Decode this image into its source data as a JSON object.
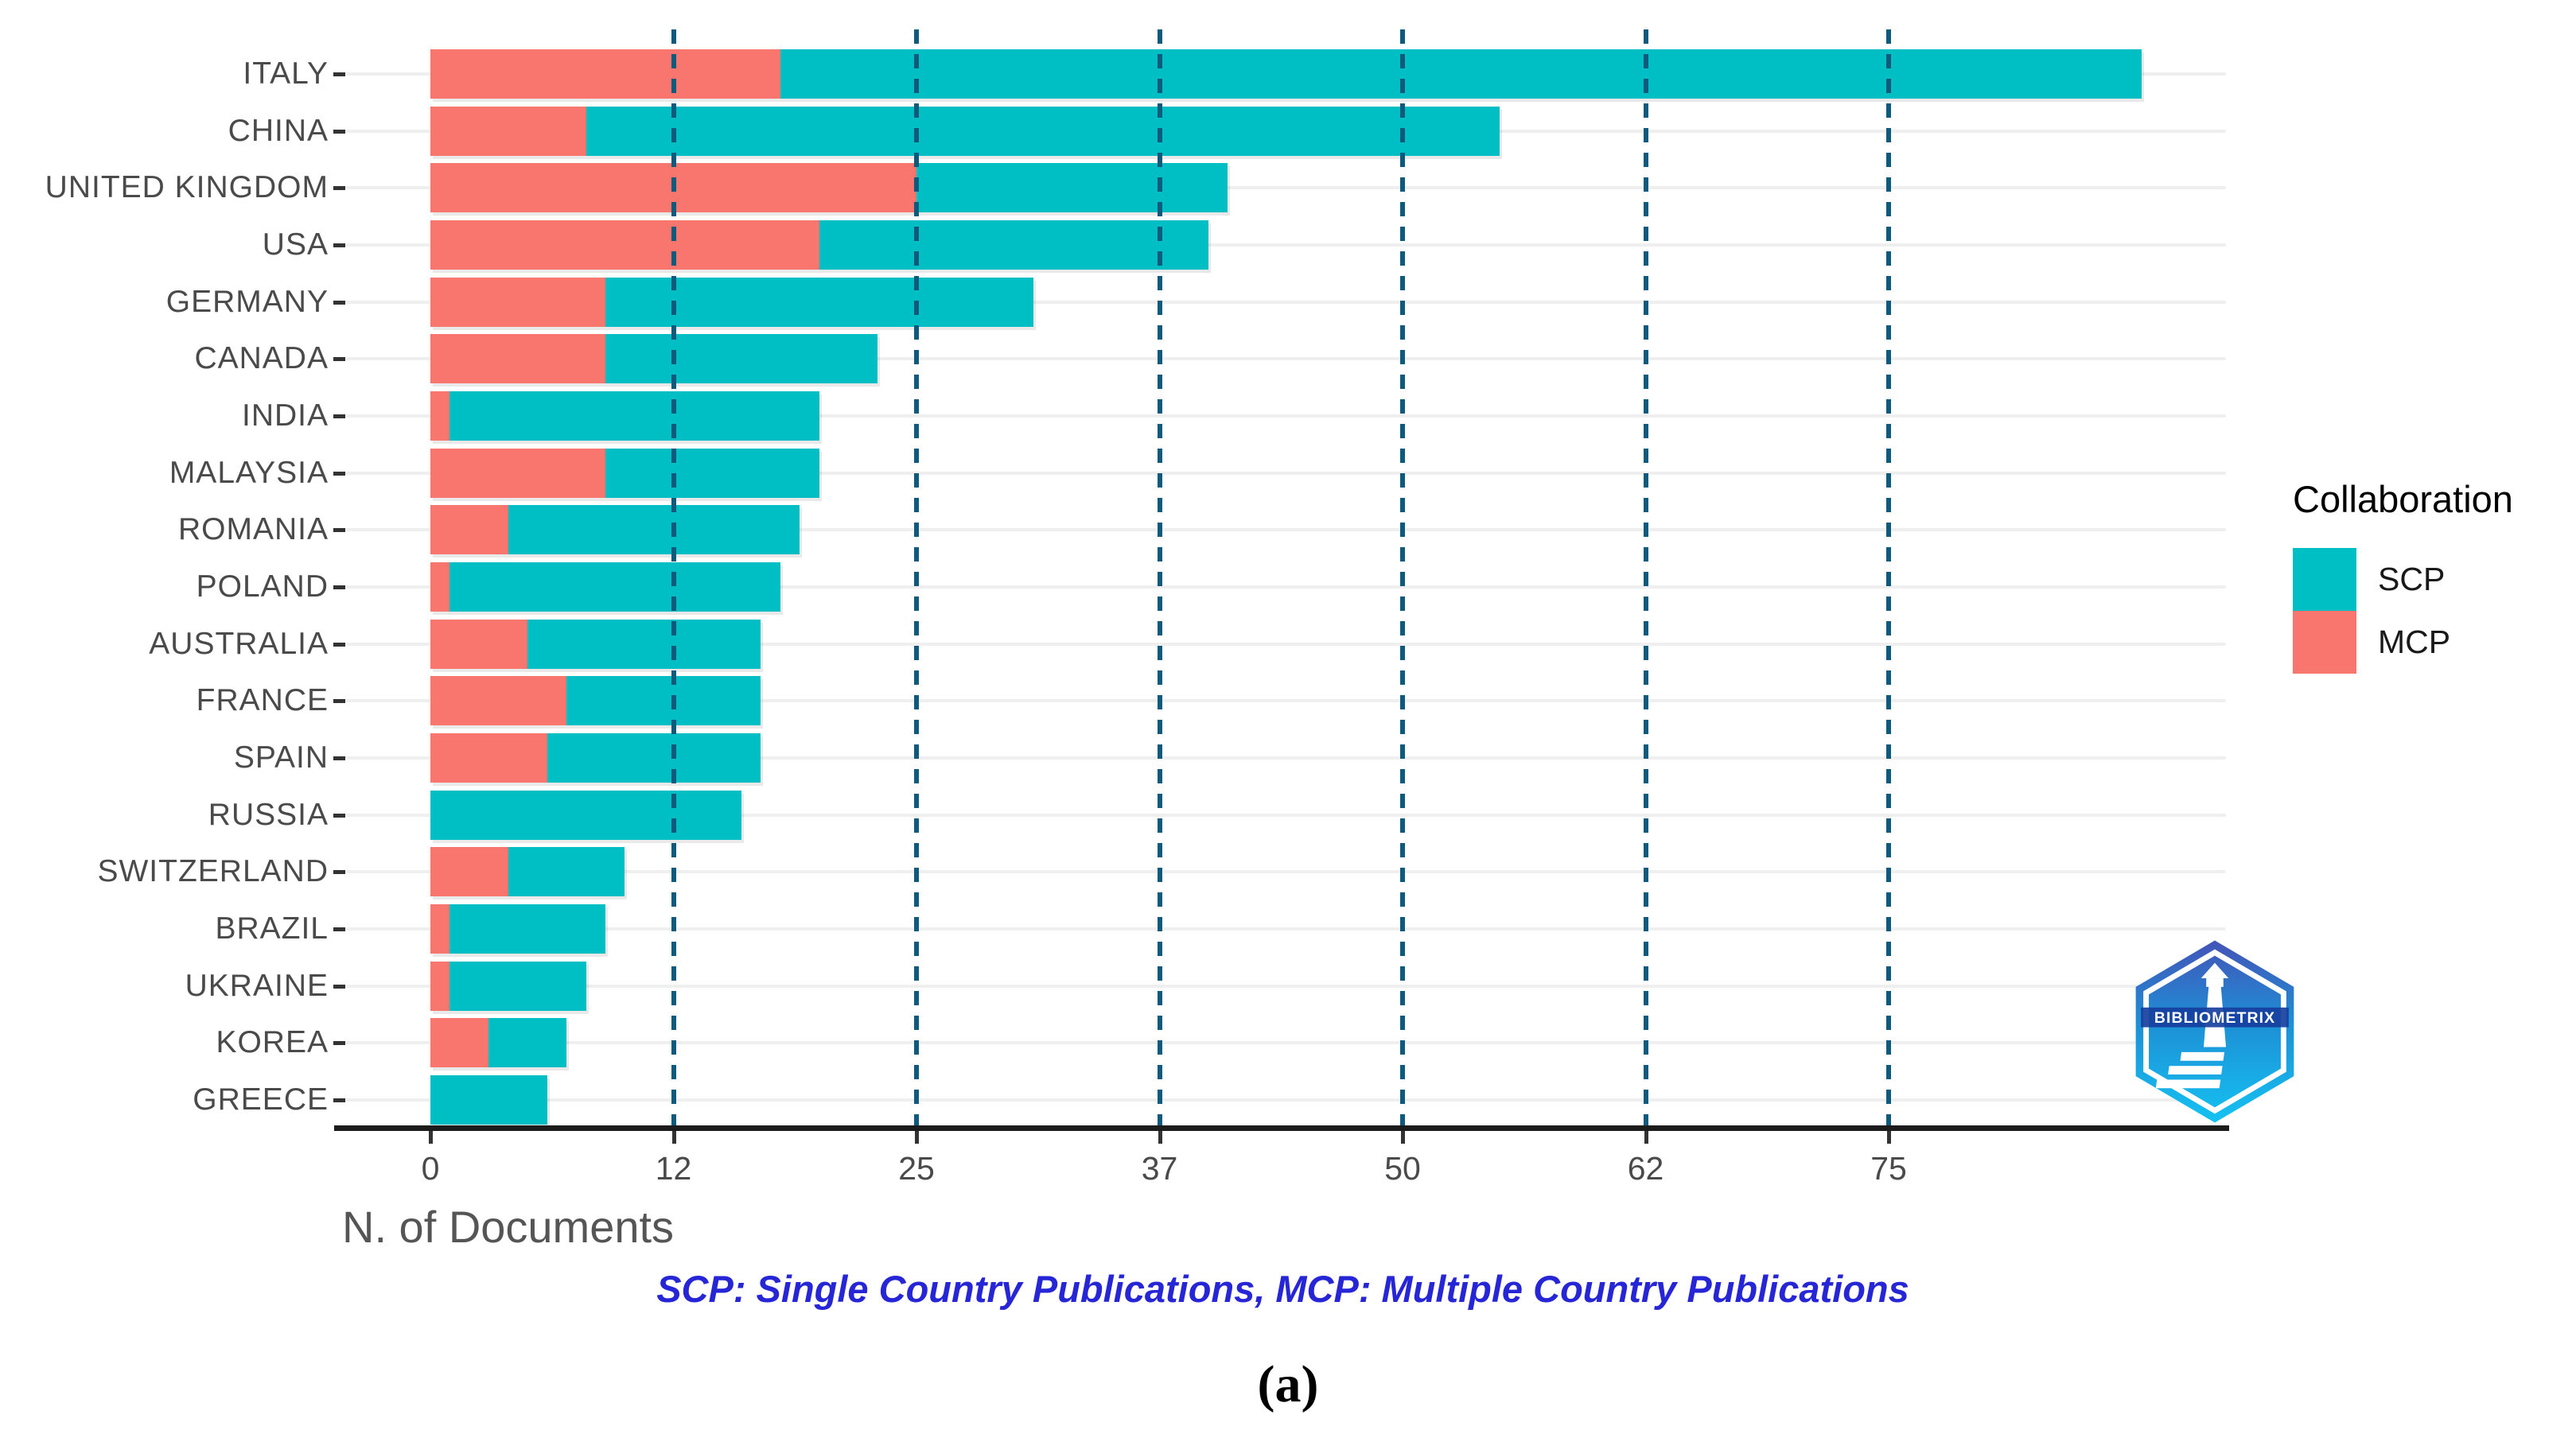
{
  "chart_data": {
    "type": "bar",
    "orientation": "horizontal",
    "stacked": true,
    "title": "",
    "xlabel": "N. of Documents",
    "categories": [
      "ITALY",
      "CHINA",
      "UNITED KINGDOM",
      "USA",
      "GERMANY",
      "CANADA",
      "INDIA",
      "MALAYSIA",
      "ROMANIA",
      "POLAND",
      "AUSTRALIA",
      "FRANCE",
      "SPAIN",
      "RUSSIA",
      "SWITZERLAND",
      "BRAZIL",
      "UKRAINE",
      "KOREA",
      "GREECE"
    ],
    "series": [
      {
        "name": "MCP",
        "color": "#F8766D",
        "values": [
          18,
          8,
          25,
          20,
          9,
          9,
          1,
          9,
          4,
          1,
          5,
          7,
          6,
          0,
          4,
          1,
          1,
          3,
          0
        ]
      },
      {
        "name": "SCP",
        "color": "#00BFC4",
        "values": [
          70,
          47,
          16,
          20,
          22,
          14,
          19,
          11,
          15,
          17,
          12,
          10,
          11,
          16,
          6,
          8,
          7,
          4,
          6
        ]
      }
    ],
    "totals": [
      88,
      55,
      41,
      40,
      31,
      23,
      20,
      20,
      19,
      18,
      17,
      17,
      17,
      16,
      10,
      9,
      8,
      7,
      6
    ],
    "x_axis": {
      "ticks": [
        {
          "label": "0",
          "value": 0
        },
        {
          "label": "12",
          "value": 12.5
        },
        {
          "label": "25",
          "value": 25
        },
        {
          "label": "37",
          "value": 37.5
        },
        {
          "label": "50",
          "value": 50
        },
        {
          "label": "62",
          "value": 62.5
        },
        {
          "label": "75",
          "value": 75
        }
      ],
      "range": [
        -4.7,
        92.3
      ],
      "grid": "dashed-vertical-at-ticks"
    },
    "legend": {
      "title": "Collaboration",
      "position": "right",
      "entries": [
        {
          "label": "SCP",
          "color": "#00BFC4"
        },
        {
          "label": "MCP",
          "color": "#F8766D"
        }
      ]
    },
    "footnote": "SCP: Single Country Publications, MCP: Multiple Country Publications",
    "caption": "(a)",
    "colors": {
      "scp": "#00BFC4",
      "mcp": "#F8766D",
      "dashed_gridline": "#0E5A7D",
      "horizontal_gridline": "#EFEFEF",
      "axis_line": "#1C1C1C",
      "axis_text": "#4A4A4A",
      "footnote_text": "#2626D6"
    }
  },
  "logo": {
    "text": "BIBLIOMETRIX"
  }
}
